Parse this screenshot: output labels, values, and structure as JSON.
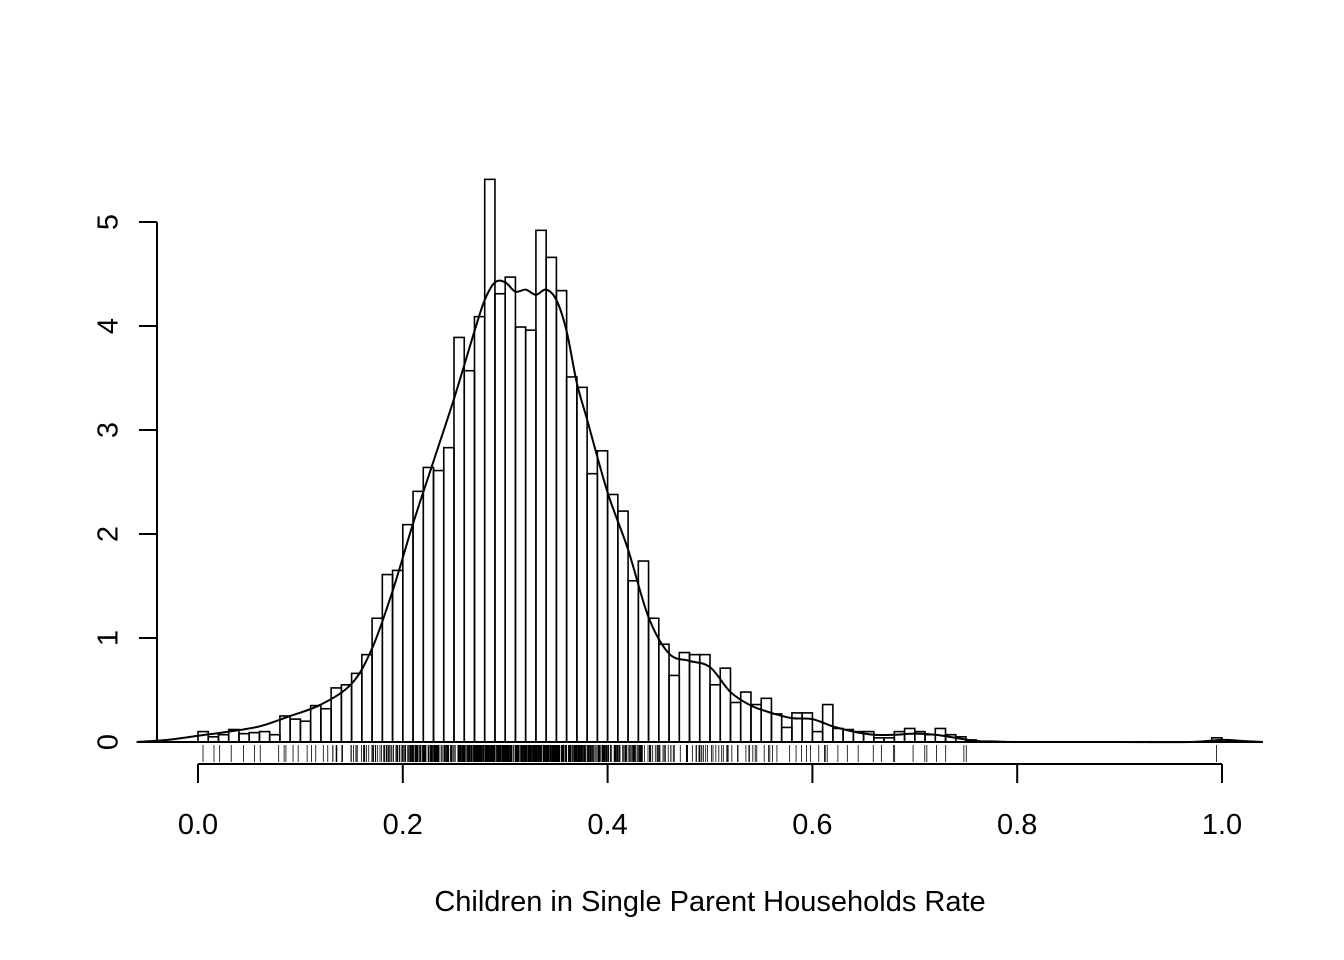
{
  "chart_data": {
    "type": "histogram",
    "title": "",
    "xlabel": "Children in Single Parent Households Rate",
    "ylabel": "",
    "xlim": [
      -0.06,
      1.04
    ],
    "ylim": [
      0,
      5.4
    ],
    "xticks": [
      0.0,
      0.2,
      0.4,
      0.6,
      0.8,
      1.0
    ],
    "xtick_labels": [
      "0.0",
      "0.2",
      "0.4",
      "0.6",
      "0.8",
      "1.0"
    ],
    "yticks": [
      0,
      1,
      2,
      3,
      4,
      5
    ],
    "ytick_labels": [
      "0",
      "1",
      "2",
      "3",
      "4",
      "5"
    ],
    "bin_width": 0.01,
    "bin_start": 0.0,
    "values": [
      0.1,
      0.05,
      0.07,
      0.12,
      0.08,
      0.09,
      0.1,
      0.07,
      0.25,
      0.22,
      0.2,
      0.35,
      0.32,
      0.52,
      0.55,
      0.66,
      0.84,
      1.19,
      1.61,
      1.65,
      2.09,
      2.41,
      2.64,
      2.61,
      2.83,
      3.89,
      3.57,
      4.09,
      5.41,
      4.31,
      4.47,
      3.99,
      3.96,
      4.92,
      4.66,
      4.34,
      3.51,
      3.41,
      2.58,
      2.8,
      2.38,
      2.22,
      1.55,
      1.74,
      1.19,
      0.94,
      0.64,
      0.86,
      0.84,
      0.84,
      0.55,
      0.71,
      0.38,
      0.48,
      0.36,
      0.42,
      0.27,
      0.14,
      0.28,
      0.28,
      0.1,
      0.36,
      0.13,
      0.12,
      0.1,
      0.1,
      0.04,
      0.04,
      0.1,
      0.13,
      0.1,
      0.07,
      0.13,
      0.07,
      0.05,
      0.02,
      0,
      0,
      0,
      0,
      0,
      0,
      0,
      0,
      0,
      0,
      0,
      0,
      0,
      0,
      0,
      0,
      0,
      0,
      0,
      0,
      0,
      0,
      0,
      0.04
    ],
    "density_curve": {
      "x": [
        -0.06,
        -0.03,
        0.0,
        0.03,
        0.06,
        0.09,
        0.12,
        0.15,
        0.17,
        0.19,
        0.21,
        0.23,
        0.25,
        0.27,
        0.28,
        0.29,
        0.3,
        0.31,
        0.32,
        0.33,
        0.34,
        0.35,
        0.36,
        0.37,
        0.38,
        0.4,
        0.42,
        0.44,
        0.46,
        0.48,
        0.5,
        0.52,
        0.54,
        0.56,
        0.58,
        0.6,
        0.62,
        0.64,
        0.66,
        0.68,
        0.7,
        0.72,
        0.74,
        0.76,
        0.78,
        0.8,
        0.9,
        0.97,
        1.0,
        1.02,
        1.04
      ],
      "y": [
        0.0,
        0.02,
        0.06,
        0.1,
        0.15,
        0.25,
        0.36,
        0.56,
        0.9,
        1.45,
        2.1,
        2.7,
        3.3,
        3.95,
        4.25,
        4.42,
        4.42,
        4.33,
        4.35,
        4.3,
        4.35,
        4.25,
        3.95,
        3.45,
        3.1,
        2.4,
        1.85,
        1.2,
        0.85,
        0.78,
        0.72,
        0.48,
        0.35,
        0.28,
        0.23,
        0.22,
        0.15,
        0.1,
        0.07,
        0.07,
        0.08,
        0.07,
        0.04,
        0.01,
        0.005,
        0.0,
        0.0,
        0.0,
        0.02,
        0.01,
        0.0
      ]
    },
    "rug_sample_x": [
      0.03,
      0.04,
      0.06,
      0.08,
      0.1,
      0.11,
      0.12,
      0.13,
      0.14,
      0.15,
      0.16,
      0.17,
      0.18,
      0.19,
      0.2,
      0.21,
      0.22,
      0.23,
      0.24,
      0.25,
      0.26,
      0.27,
      0.28,
      0.29,
      0.3,
      0.31,
      0.32,
      0.33,
      0.34,
      0.35,
      0.36,
      0.37,
      0.38,
      0.39,
      0.4,
      0.41,
      0.42,
      0.43,
      0.44,
      0.45,
      0.46,
      0.47,
      0.48,
      0.49,
      0.5,
      0.51,
      0.52,
      0.53,
      0.54,
      0.55,
      0.56,
      0.57,
      0.58,
      0.59,
      0.6,
      0.61,
      0.62,
      0.63,
      0.64,
      0.66,
      0.68,
      0.69,
      0.7,
      0.71,
      0.72,
      0.73,
      0.74
    ],
    "legend": "none",
    "grid": false
  }
}
